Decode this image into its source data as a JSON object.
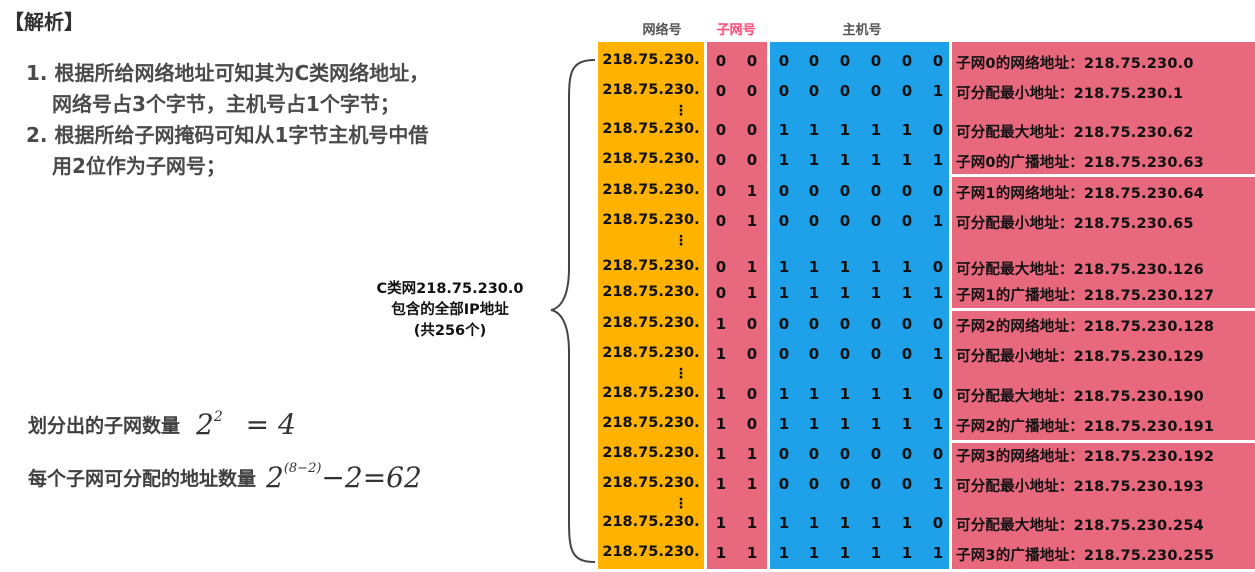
{
  "title": "【解析】",
  "analysis": {
    "point1_line1": "1. 根据所给网络地址可知其为C类网络地址，",
    "point1_line2": "网络号占3个字节，主机号占1个字节；",
    "point2_line1": "2. 根据所给子网掩码可知从1字节主机号中借",
    "point2_line2": "用2位作为子网号；"
  },
  "formulas": {
    "subnet_count_label": "划分出的子网数量",
    "subnet_count_base": "2",
    "subnet_count_exp": "2",
    "subnet_count_rest": "= 4",
    "addr_count_label": "每个子网可分配的地址数量",
    "addr_count_base": "2",
    "addr_count_exp": "(8−2)",
    "addr_count_rest": "−2=62"
  },
  "headers": {
    "network": "网络号",
    "subnet": "子网号",
    "host": "主机号"
  },
  "brace_label": {
    "line1": "C类网218.75.230.0",
    "line2": "包含的全部IP地址",
    "line3": "(共256个)"
  },
  "colors": {
    "network_band": "#ffb300",
    "subnet_band": "#e8687e",
    "host_band": "#1ea1e8",
    "label_band": "#e8687e",
    "subnet_header": "#ff4d7a"
  },
  "rows": [
    {
      "net": "218.75.230.",
      "s": [
        "0",
        "0"
      ],
      "h": [
        "0",
        "0",
        "0",
        "0",
        "0",
        "0"
      ],
      "label": "子网0的网络地址：218.75.230.0"
    },
    {
      "net": "218.75.230.",
      "s": [
        "0",
        "0"
      ],
      "h": [
        "0",
        "0",
        "0",
        "0",
        "0",
        "1"
      ],
      "label": "可分配最小地址：218.75.230.1"
    },
    {
      "net": "218.75.230.",
      "s": [
        "0",
        "0"
      ],
      "h": [
        "1",
        "1",
        "1",
        "1",
        "1",
        "0"
      ],
      "label": "可分配最大地址：218.75.230.62"
    },
    {
      "net": "218.75.230.",
      "s": [
        "0",
        "0"
      ],
      "h": [
        "1",
        "1",
        "1",
        "1",
        "1",
        "1"
      ],
      "label": "子网0的广播地址：218.75.230.63"
    },
    {
      "net": "218.75.230.",
      "s": [
        "0",
        "1"
      ],
      "h": [
        "0",
        "0",
        "0",
        "0",
        "0",
        "0"
      ],
      "label": "子网1的网络地址：218.75.230.64"
    },
    {
      "net": "218.75.230.",
      "s": [
        "0",
        "1"
      ],
      "h": [
        "0",
        "0",
        "0",
        "0",
        "0",
        "1"
      ],
      "label": "可分配最小地址：218.75.230.65"
    },
    {
      "net": "218.75.230.",
      "s": [
        "0",
        "1"
      ],
      "h": [
        "1",
        "1",
        "1",
        "1",
        "1",
        "0"
      ],
      "label": "可分配最大地址：218.75.230.126"
    },
    {
      "net": "218.75.230.",
      "s": [
        "0",
        "1"
      ],
      "h": [
        "1",
        "1",
        "1",
        "1",
        "1",
        "1"
      ],
      "label": "子网1的广播地址：218.75.230.127"
    },
    {
      "net": "218.75.230.",
      "s": [
        "1",
        "0"
      ],
      "h": [
        "0",
        "0",
        "0",
        "0",
        "0",
        "0"
      ],
      "label": "子网2的网络地址：218.75.230.128"
    },
    {
      "net": "218.75.230.",
      "s": [
        "1",
        "0"
      ],
      "h": [
        "0",
        "0",
        "0",
        "0",
        "0",
        "1"
      ],
      "label": "可分配最小地址：218.75.230.129"
    },
    {
      "net": "218.75.230.",
      "s": [
        "1",
        "0"
      ],
      "h": [
        "1",
        "1",
        "1",
        "1",
        "1",
        "0"
      ],
      "label": "可分配最大地址：218.75.230.190"
    },
    {
      "net": "218.75.230.",
      "s": [
        "1",
        "0"
      ],
      "h": [
        "1",
        "1",
        "1",
        "1",
        "1",
        "1"
      ],
      "label": "子网2的广播地址：218.75.230.191"
    },
    {
      "net": "218.75.230.",
      "s": [
        "1",
        "1"
      ],
      "h": [
        "0",
        "0",
        "0",
        "0",
        "0",
        "0"
      ],
      "label": "子网3的网络地址：218.75.230.192"
    },
    {
      "net": "218.75.230.",
      "s": [
        "1",
        "1"
      ],
      "h": [
        "0",
        "0",
        "0",
        "0",
        "0",
        "1"
      ],
      "label": "可分配最小地址：218.75.230.193"
    },
    {
      "net": "218.75.230.",
      "s": [
        "1",
        "1"
      ],
      "h": [
        "1",
        "1",
        "1",
        "1",
        "1",
        "0"
      ],
      "label": "可分配最大地址：218.75.230.254"
    },
    {
      "net": "218.75.230.",
      "s": [
        "1",
        "1"
      ],
      "h": [
        "1",
        "1",
        "1",
        "1",
        "1",
        "1"
      ],
      "label": "子网3的广播地址：218.75.230.255"
    }
  ]
}
